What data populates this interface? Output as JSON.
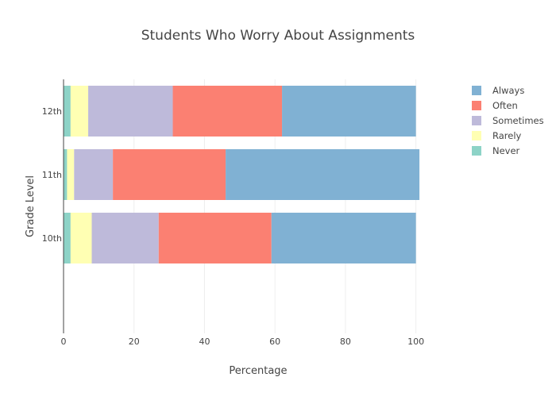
{
  "chart_data": {
    "type": "bar",
    "orientation": "horizontal",
    "stacked": true,
    "title": "Students Who Worry About Assignments",
    "xlabel": "Percentage",
    "ylabel": "Grade Level",
    "xlim": [
      0,
      110
    ],
    "x_ticks": [
      0,
      20,
      40,
      60,
      80,
      100
    ],
    "categories": [
      "10th",
      "11th",
      "12th"
    ],
    "grid": true,
    "legend_position": "top-right",
    "series": [
      {
        "name": "Never",
        "color": "#8dd3c7",
        "values": [
          2,
          1,
          2
        ]
      },
      {
        "name": "Rarely",
        "color": "#ffffb3",
        "values": [
          6,
          2,
          5
        ]
      },
      {
        "name": "Sometimes",
        "color": "#bebada",
        "values": [
          19,
          11,
          24
        ]
      },
      {
        "name": "Often",
        "color": "#fb8072",
        "values": [
          32,
          32,
          31
        ]
      },
      {
        "name": "Always",
        "color": "#80b1d3",
        "values": [
          41,
          55,
          38
        ]
      }
    ],
    "legend_order": [
      "Always",
      "Often",
      "Sometimes",
      "Rarely",
      "Never"
    ]
  }
}
